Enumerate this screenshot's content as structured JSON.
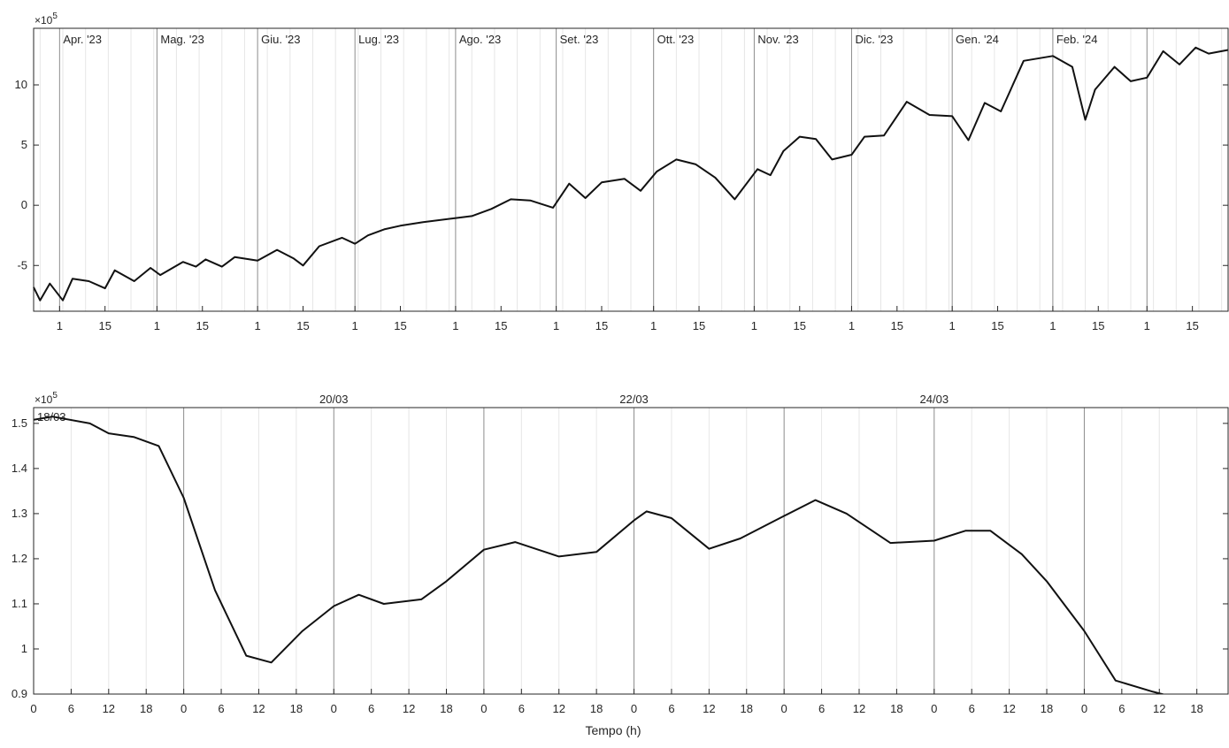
{
  "chart_data": [
    {
      "type": "line",
      "title": "",
      "xlabel": "",
      "ylabel": "",
      "exponent_label": "×10",
      "exponent_power": "5",
      "y_unit_multiplier": 100000,
      "ylim": [
        -8.8,
        14.7
      ],
      "yticks": [
        -5,
        0,
        5,
        10
      ],
      "ytick_labels": [
        "-5",
        "0",
        "5",
        "10"
      ],
      "xlim": [
        "2023-03-24",
        "2024-03-26"
      ],
      "grid": "minor-vertical",
      "month_boundaries": [
        "2023-04-01",
        "2023-05-01",
        "2023-06-01",
        "2023-07-01",
        "2023-08-01",
        "2023-09-01",
        "2023-10-01",
        "2023-11-01",
        "2023-12-01",
        "2024-01-01",
        "2024-02-01",
        "2024-03-01"
      ],
      "month_labels": [
        "Apr. '23",
        "Mag. '23",
        "Giu. '23",
        "Lug. '23",
        "Ago. '23",
        "Set. '23",
        "Ott. '23",
        "Nov. '23",
        "Dic. '23",
        "Gen. '24",
        "Feb. '24",
        ""
      ],
      "day_tick_labels": [
        "1",
        "15"
      ],
      "series": [
        {
          "color": "#111111",
          "x": [
            "2023-03-24",
            "2023-03-26",
            "2023-03-29",
            "2023-04-02",
            "2023-04-05",
            "2023-04-10",
            "2023-04-15",
            "2023-04-18",
            "2023-04-24",
            "2023-04-29",
            "2023-05-02",
            "2023-05-09",
            "2023-05-13",
            "2023-05-16",
            "2023-05-21",
            "2023-05-25",
            "2023-06-01",
            "2023-06-07",
            "2023-06-12",
            "2023-06-15",
            "2023-06-20",
            "2023-06-27",
            "2023-07-01",
            "2023-07-05",
            "2023-07-10",
            "2023-07-15",
            "2023-07-22",
            "2023-07-31",
            "2023-08-06",
            "2023-08-12",
            "2023-08-18",
            "2023-08-24",
            "2023-08-31",
            "2023-09-05",
            "2023-09-10",
            "2023-09-15",
            "2023-09-22",
            "2023-09-27",
            "2023-10-02",
            "2023-10-08",
            "2023-10-14",
            "2023-10-20",
            "2023-10-26",
            "2023-11-02",
            "2023-11-06",
            "2023-11-10",
            "2023-11-15",
            "2023-11-20",
            "2023-11-25",
            "2023-12-01",
            "2023-12-05",
            "2023-12-11",
            "2023-12-18",
            "2023-12-25",
            "2024-01-01",
            "2024-01-06",
            "2024-01-11",
            "2024-01-16",
            "2024-01-23",
            "2024-02-01",
            "2024-02-07",
            "2024-02-11",
            "2024-02-14",
            "2024-02-20",
            "2024-02-25",
            "2024-03-01",
            "2024-03-06",
            "2024-03-11",
            "2024-03-16",
            "2024-03-20",
            "2024-03-26"
          ],
          "y": [
            -6.8,
            -7.9,
            -6.5,
            -7.9,
            -6.1,
            -6.3,
            -6.9,
            -5.4,
            -6.3,
            -5.2,
            -5.8,
            -4.7,
            -5.1,
            -4.5,
            -5.1,
            -4.3,
            -4.6,
            -3.7,
            -4.4,
            -5.0,
            -3.4,
            -2.7,
            -3.2,
            -2.5,
            -2.0,
            -1.7,
            -1.4,
            -1.1,
            -0.9,
            -0.3,
            0.5,
            0.4,
            -0.2,
            1.8,
            0.6,
            1.9,
            2.2,
            1.2,
            2.8,
            3.8,
            3.4,
            2.3,
            0.5,
            3.0,
            2.5,
            4.5,
            5.7,
            5.5,
            3.8,
            4.2,
            5.7,
            5.8,
            8.6,
            7.5,
            7.4,
            5.4,
            8.5,
            7.8,
            12.0,
            12.4,
            11.5,
            7.1,
            9.6,
            11.5,
            10.3,
            10.6,
            12.8,
            11.7,
            13.1,
            12.6,
            12.9
          ]
        }
      ]
    },
    {
      "type": "line",
      "title": "",
      "xlabel": "Tempo (h)",
      "ylabel": "",
      "exponent_label": "×10",
      "exponent_power": "5",
      "y_unit_multiplier": 100000,
      "ylim": [
        0.9,
        1.535
      ],
      "yticks": [
        0.9,
        1.0,
        1.1,
        1.2,
        1.3,
        1.4,
        1.5
      ],
      "ytick_labels": [
        "0.9",
        "1",
        "1.1",
        "1.2",
        "1.3",
        "1.4",
        "1.5"
      ],
      "xlim": [
        "2024-03-18 00:00",
        "2024-03-25 23:00"
      ],
      "hour_ticks": [
        0,
        6,
        12,
        18
      ],
      "grid": "minor-vertical",
      "day_labels": [
        {
          "day": "2024-03-18",
          "label": "18/03"
        },
        {
          "day": "2024-03-20",
          "label": "20/03"
        },
        {
          "day": "2024-03-22",
          "label": "22/03"
        },
        {
          "day": "2024-03-24",
          "label": "24/03"
        }
      ],
      "series": [
        {
          "color": "#111111",
          "x": [
            "2024-03-18 00:00",
            "2024-03-18 03:00",
            "2024-03-18 09:00",
            "2024-03-18 12:00",
            "2024-03-18 16:00",
            "2024-03-18 20:00",
            "2024-03-19 00:00",
            "2024-03-19 05:00",
            "2024-03-19 10:00",
            "2024-03-19 14:00",
            "2024-03-19 19:00",
            "2024-03-20 00:00",
            "2024-03-20 04:00",
            "2024-03-20 08:00",
            "2024-03-20 14:00",
            "2024-03-20 18:00",
            "2024-03-21 00:00",
            "2024-03-21 05:00",
            "2024-03-21 12:00",
            "2024-03-21 18:00",
            "2024-03-22 00:00",
            "2024-03-22 02:00",
            "2024-03-22 06:00",
            "2024-03-22 12:00",
            "2024-03-22 17:00",
            "2024-03-23 00:00",
            "2024-03-23 05:00",
            "2024-03-23 10:00",
            "2024-03-23 17:00",
            "2024-03-24 00:00",
            "2024-03-24 05:00",
            "2024-03-24 09:00",
            "2024-03-24 14:00",
            "2024-03-24 18:00",
            "2024-03-25 00:00",
            "2024-03-25 05:00",
            "2024-03-25 11:00",
            "2024-03-25 18:00",
            "2024-03-25 23:00"
          ],
          "y": [
            1.508,
            1.515,
            1.5,
            1.478,
            1.47,
            1.45,
            1.335,
            1.13,
            0.985,
            0.97,
            1.04,
            1.095,
            1.12,
            1.1,
            1.11,
            1.15,
            1.22,
            1.237,
            1.205,
            1.215,
            1.285,
            1.305,
            1.29,
            1.222,
            1.245,
            1.295,
            1.33,
            1.3,
            1.235,
            1.24,
            1.262,
            1.262,
            1.21,
            1.15,
            1.04,
            0.93,
            0.905,
            0.88,
            0.87
          ]
        }
      ]
    }
  ]
}
